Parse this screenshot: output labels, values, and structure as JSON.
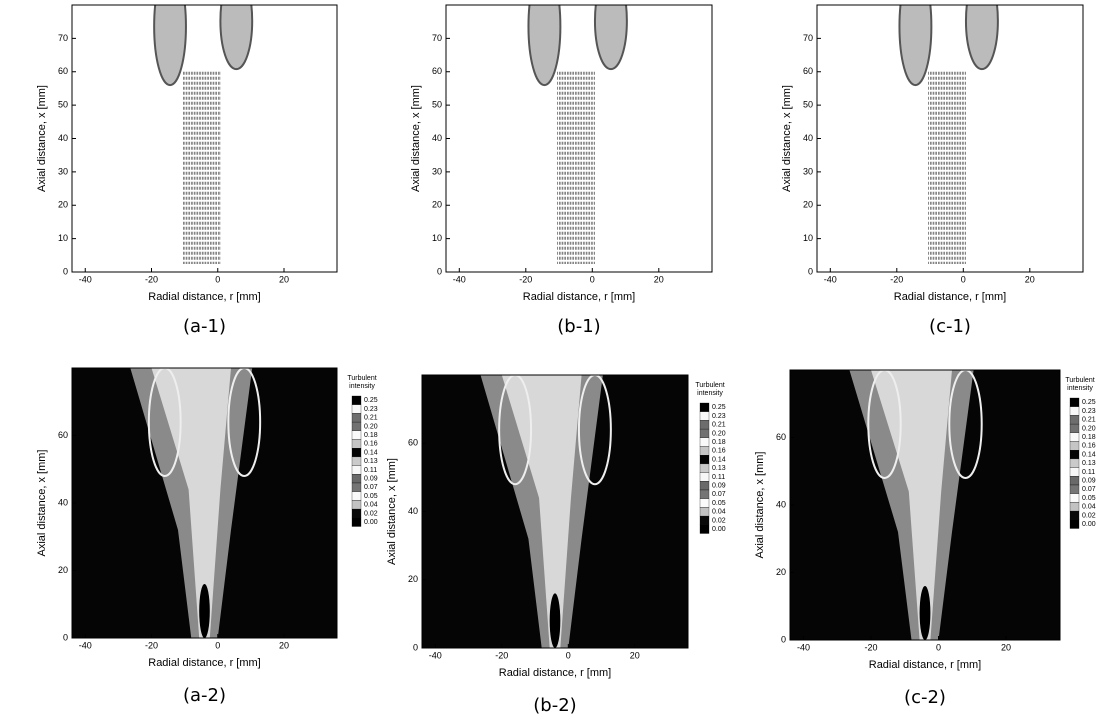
{
  "chart_data": [
    {
      "type": "vector",
      "caption": "(a-1)",
      "xlabel": "Radial distance, r [mm]",
      "ylabel": "Axial distance, x [mm]",
      "xlim": [
        -44,
        36
      ],
      "ylim": [
        0,
        80
      ],
      "xticks": [
        -40,
        -20,
        0,
        20
      ],
      "yticks": [
        0,
        10,
        20,
        30,
        40,
        50,
        60,
        70
      ]
    },
    {
      "type": "vector",
      "caption": "(b-1)",
      "xlabel": "Radial distance, r [mm]",
      "ylabel": "Axial distance, x [mm]",
      "xlim": [
        -44,
        36
      ],
      "ylim": [
        0,
        80
      ],
      "xticks": [
        -40,
        -20,
        0,
        20
      ],
      "yticks": [
        0,
        10,
        20,
        30,
        40,
        50,
        60,
        70
      ]
    },
    {
      "type": "vector",
      "caption": "(c-1)",
      "xlabel": "Radial distance, r [mm]",
      "ylabel": "Axial distance, x [mm]",
      "xlim": [
        -44,
        36
      ],
      "ylim": [
        0,
        80
      ],
      "xticks": [
        -40,
        -20,
        0,
        20
      ],
      "yticks": [
        0,
        10,
        20,
        30,
        40,
        50,
        60,
        70
      ]
    },
    {
      "type": "contour",
      "caption": "(a-2)",
      "xlabel": "Radial distance, r [mm]",
      "ylabel": "Axial distance, x [mm]",
      "xlim": [
        -44,
        36
      ],
      "ylim": [
        0,
        80
      ],
      "xticks": [
        -40,
        -20,
        0,
        20
      ],
      "yticks": [
        0,
        20,
        40,
        60
      ],
      "colorbar_title": [
        "Turbulent",
        "intensity"
      ],
      "levels": [
        0.25,
        0.23,
        0.21,
        {
          "value": 0.2,
          "label": "0.20"
        },
        0.18,
        0.16,
        0.14,
        0.13,
        0.11,
        0.09,
        0.07,
        0.05,
        0.04,
        0.02,
        {
          "value": 0,
          "label": "0.00"
        }
      ]
    },
    {
      "type": "contour",
      "caption": "(b-2)",
      "xlabel": "Radial distance, r [mm]",
      "ylabel": "Axial distance, x [mm]",
      "xlim": [
        -44,
        36
      ],
      "ylim": [
        0,
        80
      ],
      "xticks": [
        -40,
        -20,
        0,
        20
      ],
      "yticks": [
        0,
        20,
        40,
        60
      ],
      "colorbar_title": [
        "Turbulent",
        "intensity"
      ],
      "levels": [
        0.25,
        0.23,
        0.21,
        {
          "value": 0.2,
          "label": "0.20"
        },
        0.18,
        0.16,
        0.14,
        0.13,
        0.11,
        0.09,
        0.07,
        0.05,
        0.04,
        0.02,
        {
          "value": 0,
          "label": "0.00"
        }
      ]
    },
    {
      "type": "contour",
      "caption": "(c-2)",
      "xlabel": "Radial distance, r [mm]",
      "ylabel": "Axial distance, x [mm]",
      "xlim": [
        -44,
        36
      ],
      "ylim": [
        0,
        80
      ],
      "xticks": [
        -40,
        -20,
        0,
        20
      ],
      "yticks": [
        0,
        20,
        40,
        60
      ],
      "colorbar_title": [
        "Turbulent",
        "intensity"
      ],
      "levels": [
        0.25,
        0.23,
        0.21,
        {
          "value": 0.2,
          "label": "0.20"
        },
        0.18,
        0.16,
        0.14,
        0.13,
        0.11,
        0.09,
        0.07,
        0.05,
        0.04,
        0.02,
        {
          "value": 0,
          "label": "0.00"
        }
      ]
    }
  ]
}
